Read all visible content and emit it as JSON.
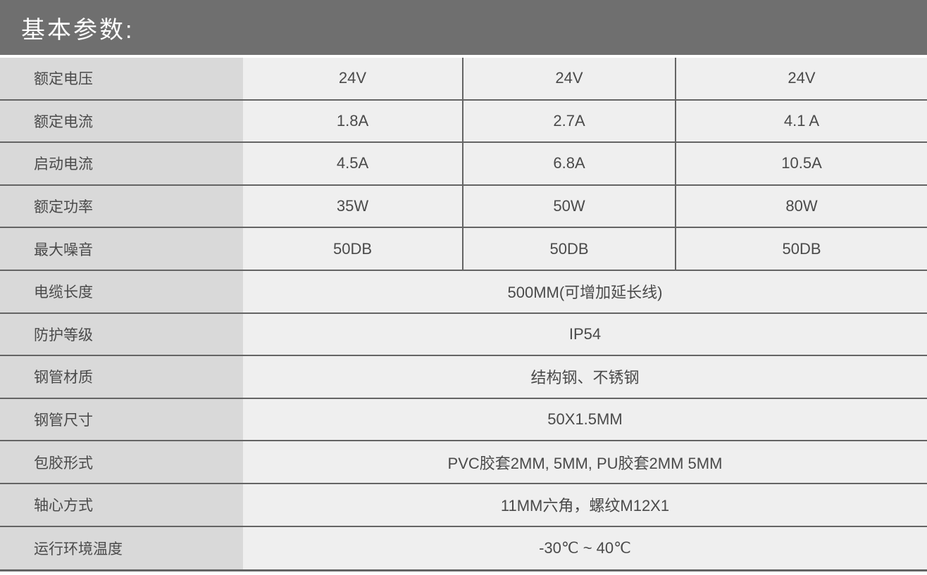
{
  "header": {
    "title": "基本参数:"
  },
  "table": {
    "rows": [
      {
        "label": "额定电压",
        "values": [
          "24V",
          "24V",
          "24V"
        ]
      },
      {
        "label": "额定电流",
        "values": [
          "1.8A",
          "2.7A",
          "4.1 A"
        ]
      },
      {
        "label": "启动电流",
        "values": [
          "4.5A",
          "6.8A",
          "10.5A"
        ]
      },
      {
        "label": "额定功率",
        "values": [
          "35W",
          "50W",
          "80W"
        ]
      },
      {
        "label": "最大噪音",
        "values": [
          "50DB",
          "50DB",
          "50DB"
        ]
      },
      {
        "label": "电缆长度",
        "value": "500MM(可增加延长线)"
      },
      {
        "label": "防护等级",
        "value": "IP54"
      },
      {
        "label": "钢管材质",
        "value": "结构钢、不锈钢"
      },
      {
        "label": "钢管尺寸",
        "value": "50X1.5MM"
      },
      {
        "label": "包胶形式",
        "value": "PVC胶套2MM, 5MM, PU胶套2MM 5MM"
      },
      {
        "label": "轴心方式",
        "value": "11MM六角，螺纹M12X1"
      },
      {
        "label": "运行环境温度",
        "value": "-30℃ ~ 40℃"
      }
    ]
  },
  "colors": {
    "header_bg": "#6F6F6F",
    "header_text": "#FFFFFF",
    "label_cell_bg": "#D9D9D9",
    "value_cell_bg": "#EFEFEF",
    "border": "#646464",
    "text": "#4A4A4A",
    "page_bg": "#FFFFFF"
  }
}
